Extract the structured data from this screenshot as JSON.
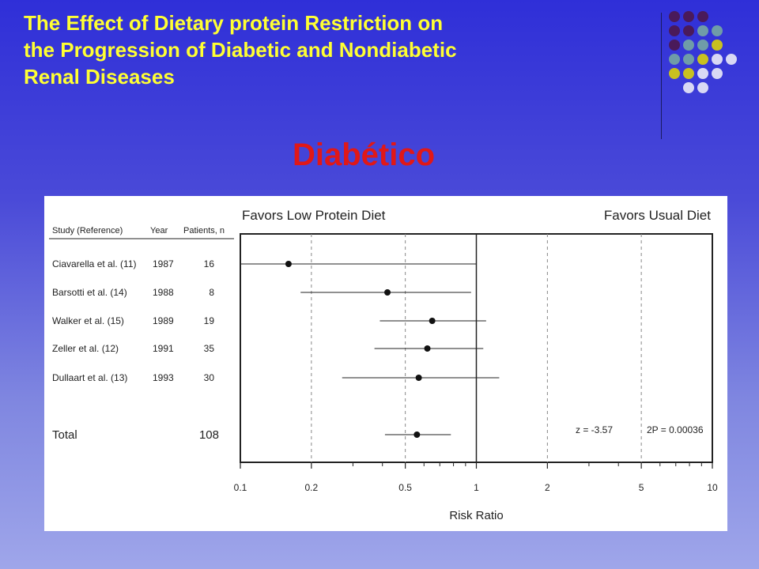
{
  "slide": {
    "title_lines": [
      "The Effect of Dietary protein Restriction on",
      "the Progression of Diabetic and Nondiabetic",
      "Renal Diseases"
    ],
    "subtitle": "Diabético"
  },
  "colors": {
    "title": "#ffff33",
    "subtitle": "#e01818",
    "dot_palette": [
      "#4a1a5a",
      "#6f9ca8",
      "#c8c020",
      "#d8d8f4"
    ]
  },
  "chart_data": {
    "type": "forest",
    "header_left": "Favors Low Protein Diet",
    "header_right": "Favors Usual Diet",
    "columns": [
      "Study (Reference)",
      "Year",
      "Patients, n"
    ],
    "studies": [
      {
        "study": "Ciavarella et al. (11)",
        "year": "1987",
        "n": "16",
        "rr": 0.16,
        "lo": 0.1,
        "hi": 1.0
      },
      {
        "study": "Barsotti et al. (14)",
        "year": "1988",
        "n": "8",
        "rr": 0.42,
        "lo": 0.18,
        "hi": 0.95
      },
      {
        "study": "Walker et al. (15)",
        "year": "1989",
        "n": "19",
        "rr": 0.65,
        "lo": 0.39,
        "hi": 1.1
      },
      {
        "study": "Zeller et al. (12)",
        "year": "1991",
        "n": "35",
        "rr": 0.62,
        "lo": 0.37,
        "hi": 1.07
      },
      {
        "study": "Dullaart et al. (13)",
        "year": "1993",
        "n": "30",
        "rr": 0.57,
        "lo": 0.27,
        "hi": 1.25
      }
    ],
    "total": {
      "label": "Total",
      "n": "108",
      "rr": 0.56,
      "lo": 0.41,
      "hi": 0.78
    },
    "stat_z": "z = -3.57",
    "stat_p": "2P = 0.00036",
    "x_ticks": [
      0.1,
      0.2,
      0.5,
      1,
      2,
      5,
      10
    ],
    "x_tick_labels": [
      "0.1",
      "0.2",
      "0.5",
      "1",
      "2",
      "5",
      "10"
    ],
    "x_minor_ticks": [
      0.3,
      0.4,
      0.6,
      0.7,
      0.8,
      0.9,
      3,
      4,
      6,
      7,
      8,
      9
    ],
    "dashed_lines": [
      0.2,
      0.5,
      2,
      5
    ],
    "x_scale": "log",
    "xlim": [
      0.1,
      10
    ],
    "xlabel": "Risk Ratio"
  }
}
